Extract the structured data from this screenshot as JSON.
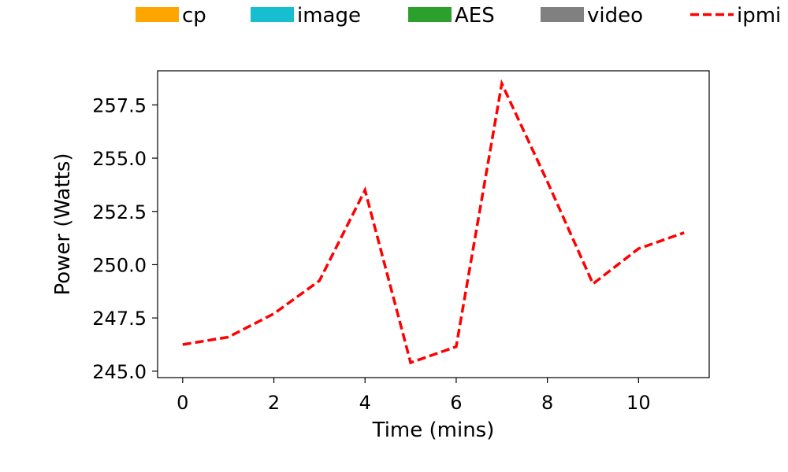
{
  "chart_data": {
    "type": "line",
    "title": "",
    "xlabel": "Time (mins)",
    "ylabel": "Power (Watts)",
    "xlim": [
      -0.55,
      11.55
    ],
    "ylim": [
      244.7,
      259.1
    ],
    "xticks": [
      0,
      2,
      4,
      6,
      8,
      10
    ],
    "xtick_labels": [
      "0",
      "2",
      "4",
      "6",
      "8",
      "10"
    ],
    "yticks": [
      245.0,
      247.5,
      250.0,
      252.5,
      255.0,
      257.5
    ],
    "ytick_labels": [
      "245.0",
      "247.5",
      "250.0",
      "252.5",
      "255.0",
      "257.5"
    ],
    "grid": false,
    "legend_position": "top",
    "legend": [
      {
        "label": "cp",
        "type": "patch",
        "color": "#ffa500"
      },
      {
        "label": "image",
        "type": "patch",
        "color": "#17becf"
      },
      {
        "label": "AES",
        "type": "patch",
        "color": "#2ca02c"
      },
      {
        "label": "video",
        "type": "patch",
        "color": "#808080"
      },
      {
        "label": "ipmi",
        "type": "line",
        "color": "#ff0000",
        "style": "dashed"
      }
    ],
    "series": [
      {
        "name": "ipmi",
        "color": "#ff0000",
        "style": "dashed",
        "x": [
          0,
          1,
          2,
          3,
          4,
          5,
          6,
          7,
          8,
          9,
          10,
          11
        ],
        "y": [
          246.25,
          246.6,
          247.7,
          249.25,
          253.5,
          245.4,
          246.15,
          258.5,
          253.9,
          249.1,
          250.75,
          251.5
        ]
      }
    ]
  }
}
